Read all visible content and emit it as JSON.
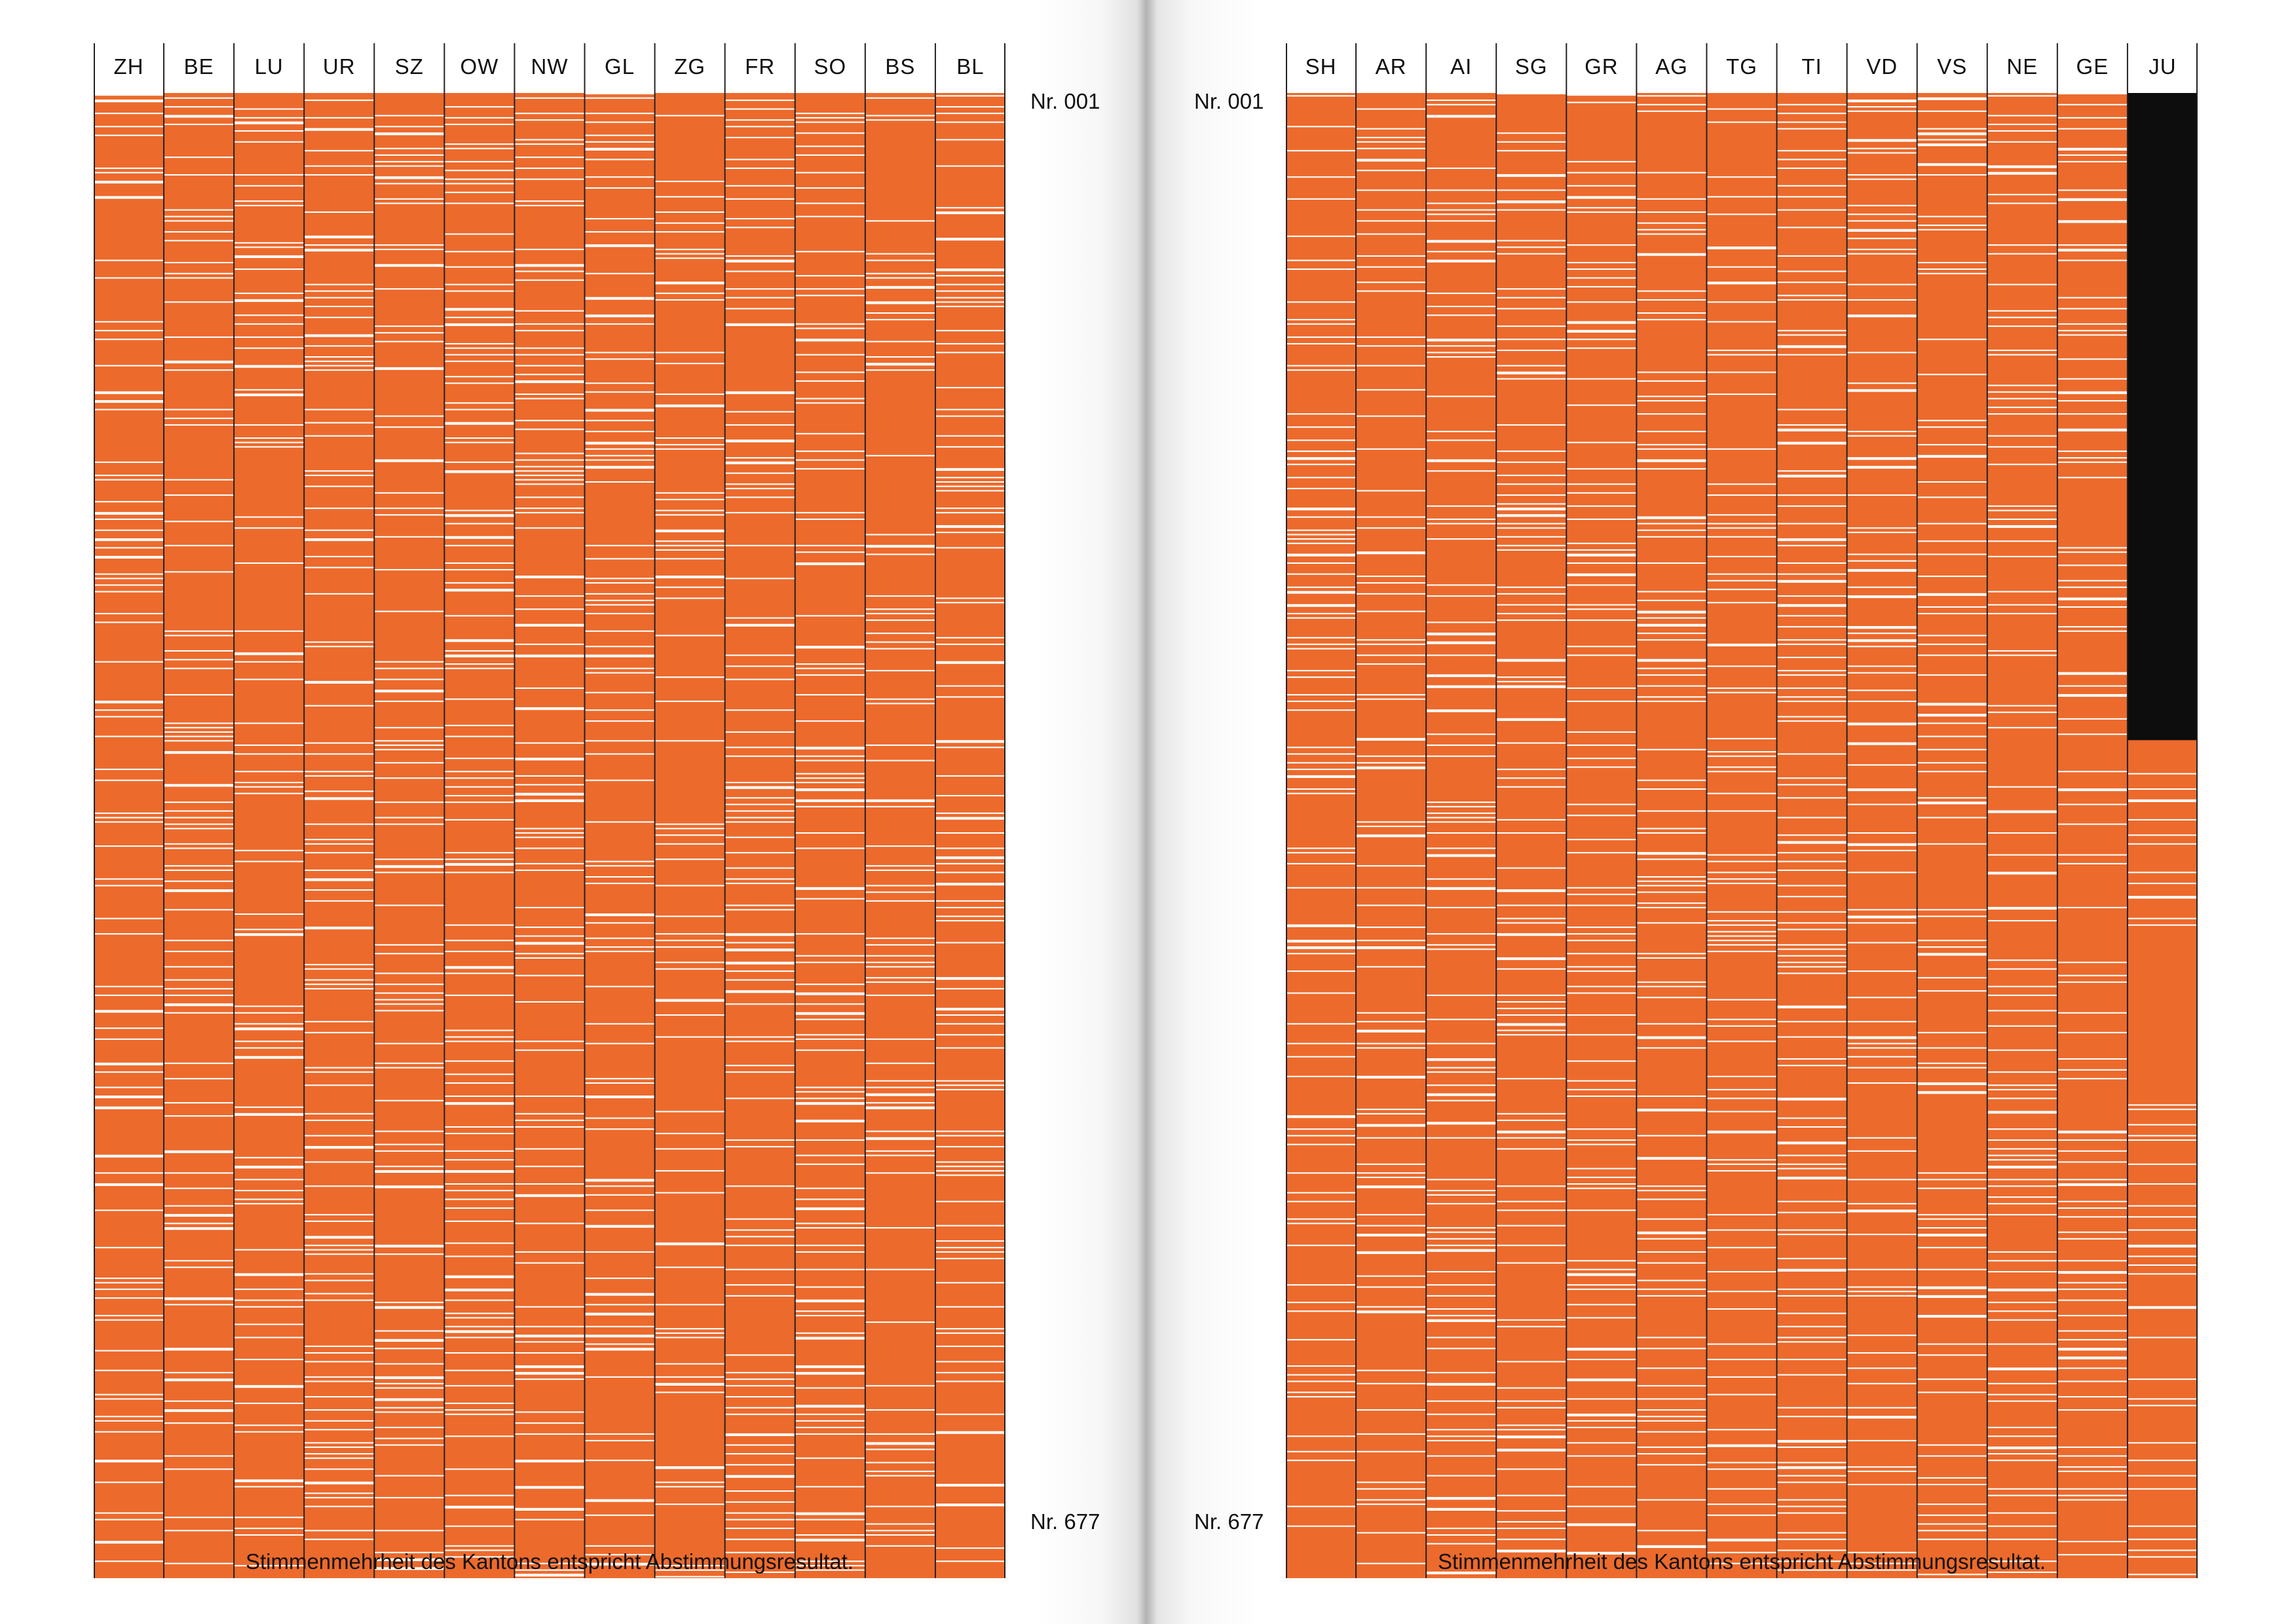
{
  "chart_data": [
    {
      "type": "heatmap",
      "categories": [
        "ZH",
        "BE",
        "LU",
        "UR",
        "SZ",
        "OW",
        "NW",
        "GL",
        "ZG",
        "FR",
        "SO",
        "BS",
        "BL"
      ],
      "y_range": [
        "Nr. 001",
        "Nr. 677"
      ],
      "caption": "Stimmenmehrheit des Kantons entspricht Abstimmungsresultat.",
      "colors": {
        "match": "#ec6a2c",
        "no_match": "#ffffff"
      }
    },
    {
      "type": "heatmap",
      "categories": [
        "SH",
        "AR",
        "AI",
        "SG",
        "GR",
        "AG",
        "TG",
        "TI",
        "VD",
        "VS",
        "NE",
        "GE",
        "JU"
      ],
      "y_range": [
        "Nr. 001",
        "Nr. 677"
      ],
      "caption": "Stimmenmehrheit des Kantons entspricht Abstimmungsresultat.",
      "colors": {
        "match": "#ec6a2c",
        "no_match": "#ffffff",
        "not_existing": "#0d0d0d"
      },
      "not_existing_rows": {
        "JU": [
          1,
          295
        ]
      }
    }
  ],
  "labels": {
    "start": "Nr. 001",
    "end": "Nr. 677"
  }
}
